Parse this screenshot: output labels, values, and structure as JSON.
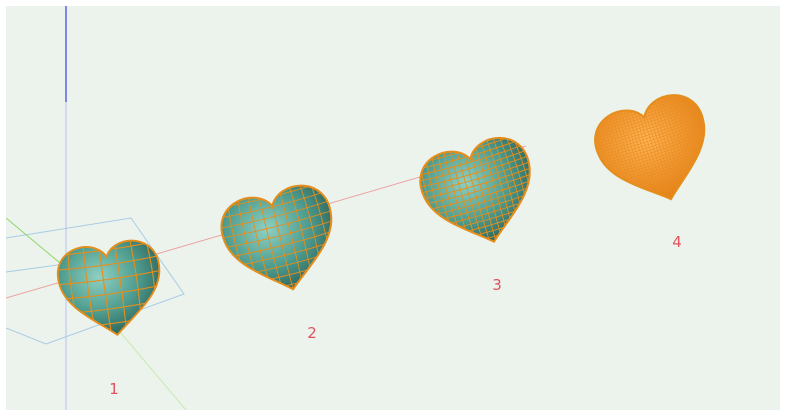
{
  "viewport": {
    "background": "#ebf3ec",
    "axis_colors": {
      "x": "#eea0a0",
      "y": "#8fd66a",
      "z": "#7b88e8"
    },
    "grid_color": "#a9cbe3"
  },
  "hearts": [
    {
      "label": "1",
      "subdivision_level": 1,
      "surface_color": "#4e9c8e",
      "wire_color": "#e58e1c"
    },
    {
      "label": "2",
      "subdivision_level": 2,
      "surface_color": "#4e9c8e",
      "wire_color": "#e58e1c"
    },
    {
      "label": "3",
      "subdivision_level": 3,
      "surface_color": "#4e9c8e",
      "wire_color": "#e58e1c"
    },
    {
      "label": "4",
      "subdivision_level": 4,
      "surface_color": "#4e9c8e",
      "wire_color": "#e58e1c"
    }
  ]
}
